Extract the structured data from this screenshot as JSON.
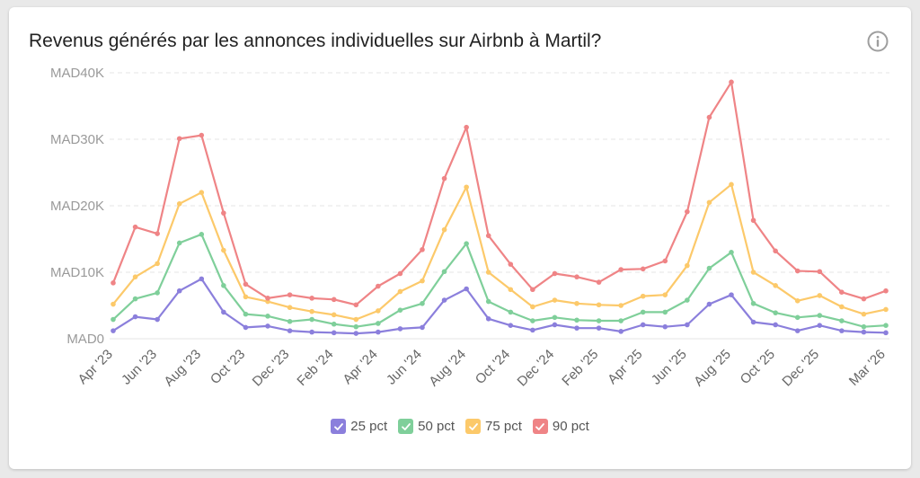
{
  "chart_data": {
    "type": "line",
    "title": "Revenus générés par les annonces individuelles sur Airbnb à Martil?",
    "x": [
      "Apr '23",
      "May '23",
      "Jun '23",
      "Jul '23",
      "Aug '23",
      "Sep '23",
      "Oct '23",
      "Nov '23",
      "Dec '23",
      "Jan '24",
      "Feb '24",
      "Mar '24",
      "Apr '24",
      "May '24",
      "Jun '24",
      "Jul '24",
      "Aug '24",
      "Sep '24",
      "Oct '24",
      "Nov '24",
      "Dec '24",
      "Jan '25",
      "Feb '25",
      "Mar '25",
      "Apr '25",
      "May '25",
      "Jun '25",
      "Jul '25",
      "Aug '25",
      "Sep '25",
      "Oct '25",
      "Nov '25",
      "Dec '25",
      "Jan '26",
      "Feb '26",
      "Mar '26"
    ],
    "x_tick_labels": [
      "Apr '23",
      "Jun '23",
      "Aug '23",
      "Oct '23",
      "Dec '23",
      "Feb '24",
      "Apr '24",
      "Jun '24",
      "Aug '24",
      "Oct '24",
      "Dec '24",
      "Feb '25",
      "Apr '25",
      "Jun '25",
      "Aug '25",
      "Oct '25",
      "Dec '25",
      "Mar '26"
    ],
    "y_tick_labels": [
      "MAD0",
      "MAD10K",
      "MAD20K",
      "MAD30K",
      "MAD40K"
    ],
    "ylim": [
      0,
      40000
    ],
    "grid": true,
    "legend_position": "bottom",
    "series": [
      {
        "name": "25 pct",
        "color": "#8b7fdc",
        "values": [
          1200,
          3300,
          2900,
          7200,
          9000,
          4000,
          1700,
          1900,
          1200,
          1000,
          900,
          800,
          1000,
          1500,
          1700,
          5800,
          7500,
          3000,
          2000,
          1300,
          2100,
          1600,
          1600,
          1100,
          2100,
          1800,
          2100,
          5200,
          6600,
          2500,
          2100,
          1200,
          2000,
          1200,
          1000,
          900
        ]
      },
      {
        "name": "50 pct",
        "color": "#7fcf9a",
        "values": [
          2900,
          6000,
          6900,
          14400,
          15700,
          8000,
          3700,
          3400,
          2600,
          2900,
          2200,
          1800,
          2300,
          4300,
          5300,
          10100,
          14300,
          5600,
          4000,
          2700,
          3200,
          2800,
          2700,
          2700,
          4000,
          4000,
          5800,
          10600,
          13000,
          5300,
          3900,
          3200,
          3500,
          2700,
          1800,
          2000
        ]
      },
      {
        "name": "75 pct",
        "color": "#fcc96a",
        "values": [
          5200,
          9300,
          11300,
          20300,
          22000,
          13300,
          6300,
          5600,
          4700,
          4100,
          3600,
          2900,
          4200,
          7100,
          8700,
          16400,
          22800,
          10000,
          7400,
          4800,
          5800,
          5300,
          5100,
          5000,
          6400,
          6600,
          11000,
          20500,
          23200,
          10000,
          8000,
          5700,
          6500,
          4800,
          3700,
          4400
        ]
      },
      {
        "name": "90 pct",
        "color": "#ef8486",
        "values": [
          8400,
          16800,
          15800,
          30100,
          30600,
          18900,
          8200,
          6100,
          6600,
          6100,
          5900,
          5100,
          7900,
          9800,
          13400,
          24100,
          31800,
          15500,
          11200,
          7400,
          9800,
          9300,
          8500,
          10400,
          10500,
          11700,
          19100,
          33300,
          38600,
          17800,
          13200,
          10200,
          10100,
          7000,
          6000,
          7200
        ]
      }
    ]
  },
  "legend": {
    "items": [
      {
        "label": "25 pct",
        "color": "#8b7fdc"
      },
      {
        "label": "50 pct",
        "color": "#7fcf9a"
      },
      {
        "label": "75 pct",
        "color": "#fcc96a"
      },
      {
        "label": "90 pct",
        "color": "#ef8486"
      }
    ]
  },
  "colors": {
    "grid": "#e6e6e6",
    "tick_y": "#9a9a9a",
    "tick_x": "#666666"
  },
  "icons": {
    "info": "info-circle-icon",
    "legend_check": "checkmark-icon"
  }
}
